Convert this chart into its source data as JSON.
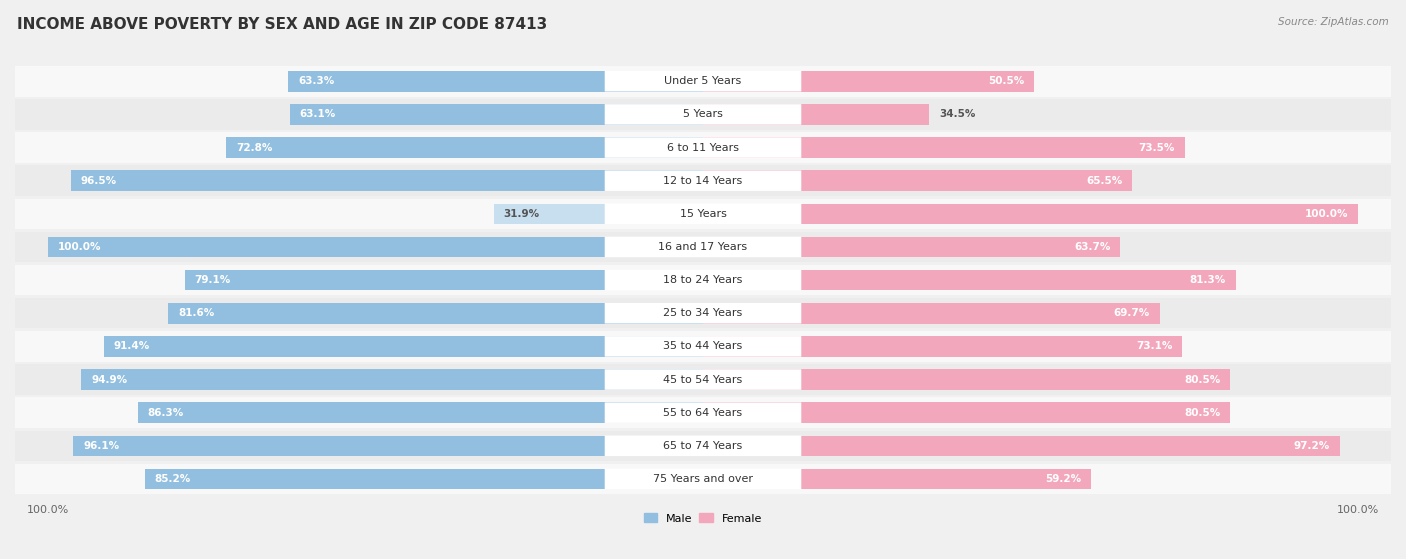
{
  "title": "INCOME ABOVE POVERTY BY SEX AND AGE IN ZIP CODE 87413",
  "source": "Source: ZipAtlas.com",
  "categories": [
    "Under 5 Years",
    "5 Years",
    "6 to 11 Years",
    "12 to 14 Years",
    "15 Years",
    "16 and 17 Years",
    "18 to 24 Years",
    "25 to 34 Years",
    "35 to 44 Years",
    "45 to 54 Years",
    "55 to 64 Years",
    "65 to 74 Years",
    "75 Years and over"
  ],
  "male_values": [
    63.3,
    63.1,
    72.8,
    96.5,
    31.9,
    100.0,
    79.1,
    81.6,
    91.4,
    94.9,
    86.3,
    96.1,
    85.2
  ],
  "female_values": [
    50.5,
    34.5,
    73.5,
    65.5,
    100.0,
    63.7,
    81.3,
    69.7,
    73.1,
    80.5,
    80.5,
    97.2,
    59.2
  ],
  "male_color": "#92bfdf",
  "female_color": "#f2a7bc",
  "male_light_color": "#c8dff0",
  "background_color": "#f0f0f0",
  "row_bg_light": "#f8f8f8",
  "row_bg_dark": "#ebebeb",
  "title_fontsize": 11,
  "label_fontsize": 8,
  "value_fontsize": 7.5,
  "source_fontsize": 7.5,
  "legend_fontsize": 8
}
